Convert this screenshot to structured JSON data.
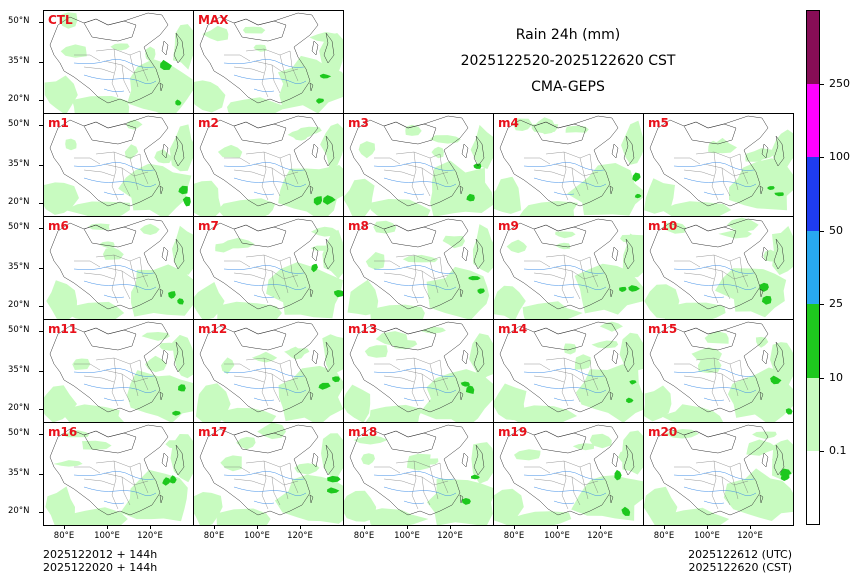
{
  "title": {
    "line1": "Rain 24h (mm)",
    "line2": "2025122520-2025122620 CST",
    "line3": "CMA-GEPS"
  },
  "panels": [
    "CTL",
    "MAX",
    "m1",
    "m2",
    "m3",
    "m4",
    "m5",
    "m6",
    "m7",
    "m8",
    "m9",
    "m10",
    "m11",
    "m12",
    "m13",
    "m14",
    "m15",
    "m16",
    "m17",
    "m18",
    "m19",
    "m20"
  ],
  "y_ticks": [
    "50°N",
    "35°N",
    "20°N"
  ],
  "x_ticks": [
    "80°E",
    "100°E",
    "120°E"
  ],
  "footer": {
    "left_line1": "2025122012 + 144h",
    "left_line2": "2025122020 + 144h",
    "right_line1": "2025122612 (UTC)",
    "right_line2": "2025122620 (CST)"
  },
  "colorbar": {
    "levels": [
      "0.1",
      "10",
      "25",
      "50",
      "100",
      "250"
    ],
    "colors": [
      "#ffffff",
      "#c8fbc0",
      "#1ec81e",
      "#28a8f0",
      "#1e3cf0",
      "#ff00ff",
      "#870d56"
    ]
  },
  "colors": {
    "label": "#e8111b",
    "rain_light": "#c8fbc0",
    "rain_moderate": "#1ec81e",
    "rain_heavy": "#28a8f0",
    "border": "#000000",
    "river": "#3f8fe8",
    "province": "#6b6b6b"
  }
}
